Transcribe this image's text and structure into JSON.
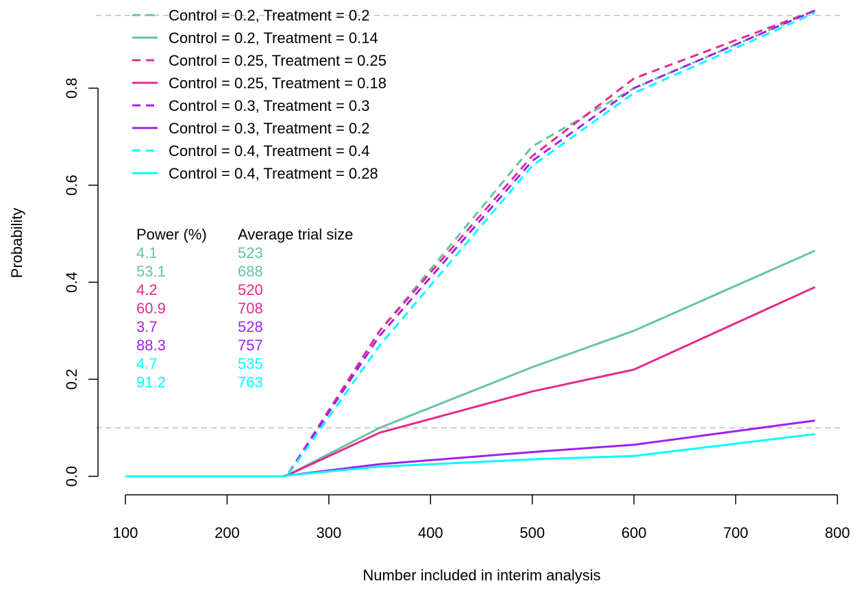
{
  "chart_data": {
    "type": "line",
    "title": "",
    "xlabel": "Number included in interim analysis",
    "ylabel": "Probability",
    "xlim": [
      100,
      800
    ],
    "ylim": [
      0,
      0.97
    ],
    "x_ticks": [
      100,
      200,
      300,
      400,
      500,
      600,
      700,
      800
    ],
    "y_ticks": [
      0.0,
      0.2,
      0.4,
      0.6,
      0.8
    ],
    "y_tick_labels": [
      "0.0",
      "0.2",
      "0.4",
      "0.6",
      "0.8"
    ],
    "reference_lines": [
      0.1,
      0.95
    ],
    "legend_position": "top-left",
    "series": [
      {
        "name": "Control = 0.2, Treatment = 0.2",
        "color": "#66C2A5",
        "dash": true,
        "x": [
          100,
          255,
          260,
          350,
          500,
          600,
          778
        ],
        "y": [
          0,
          0,
          0.005,
          0.3,
          0.68,
          0.8,
          0.96
        ]
      },
      {
        "name": "Control = 0.2, Treatment = 0.14",
        "color": "#66C2A5",
        "dash": false,
        "x": [
          100,
          255,
          260,
          350,
          500,
          600,
          778
        ],
        "y": [
          0,
          0,
          0.003,
          0.1,
          0.225,
          0.3,
          0.465
        ]
      },
      {
        "name": "Control = 0.25, Treatment = 0.25",
        "color": "#E7298A",
        "dash": true,
        "x": [
          100,
          255,
          260,
          350,
          500,
          600,
          778
        ],
        "y": [
          0,
          0,
          0.005,
          0.3,
          0.66,
          0.82,
          0.96
        ]
      },
      {
        "name": "Control = 0.25, Treatment = 0.18",
        "color": "#E7298A",
        "dash": false,
        "x": [
          100,
          255,
          260,
          350,
          500,
          600,
          778
        ],
        "y": [
          0,
          0,
          0.003,
          0.09,
          0.175,
          0.22,
          0.39
        ]
      },
      {
        "name": "Control = 0.3, Treatment = 0.3",
        "color": "#A020F0",
        "dash": true,
        "x": [
          100,
          255,
          260,
          350,
          500,
          600,
          778
        ],
        "y": [
          0,
          0,
          0.005,
          0.29,
          0.65,
          0.8,
          0.96
        ]
      },
      {
        "name": "Control = 0.3, Treatment = 0.2",
        "color": "#A020F0",
        "dash": false,
        "x": [
          100,
          255,
          260,
          350,
          500,
          600,
          778
        ],
        "y": [
          0,
          0,
          0.002,
          0.025,
          0.05,
          0.065,
          0.115
        ]
      },
      {
        "name": "Control = 0.4, Treatment = 0.4",
        "color": "#00FFFF",
        "dash": true,
        "x": [
          100,
          255,
          260,
          350,
          500,
          600,
          778
        ],
        "y": [
          0,
          0,
          0.004,
          0.27,
          0.64,
          0.79,
          0.955
        ]
      },
      {
        "name": "Control = 0.4, Treatment = 0.28",
        "color": "#00FFFF",
        "dash": false,
        "x": [
          100,
          255,
          260,
          350,
          500,
          600,
          778
        ],
        "y": [
          0,
          0,
          0.002,
          0.02,
          0.035,
          0.042,
          0.087
        ]
      }
    ],
    "summary_table": {
      "headers": [
        "Power (%)",
        "Average trial size"
      ],
      "rows": [
        {
          "power": "4.1",
          "size": "523",
          "color": "#66C2A5"
        },
        {
          "power": "53.1",
          "size": "688",
          "color": "#66C2A5"
        },
        {
          "power": "4.2",
          "size": "520",
          "color": "#E7298A"
        },
        {
          "power": "60.9",
          "size": "708",
          "color": "#E7298A"
        },
        {
          "power": "3.7",
          "size": "528",
          "color": "#A020F0"
        },
        {
          "power": "88.3",
          "size": "757",
          "color": "#A020F0"
        },
        {
          "power": "4.7",
          "size": "535",
          "color": "#00FFFF"
        },
        {
          "power": "91.2",
          "size": "763",
          "color": "#00FFFF"
        }
      ]
    }
  }
}
